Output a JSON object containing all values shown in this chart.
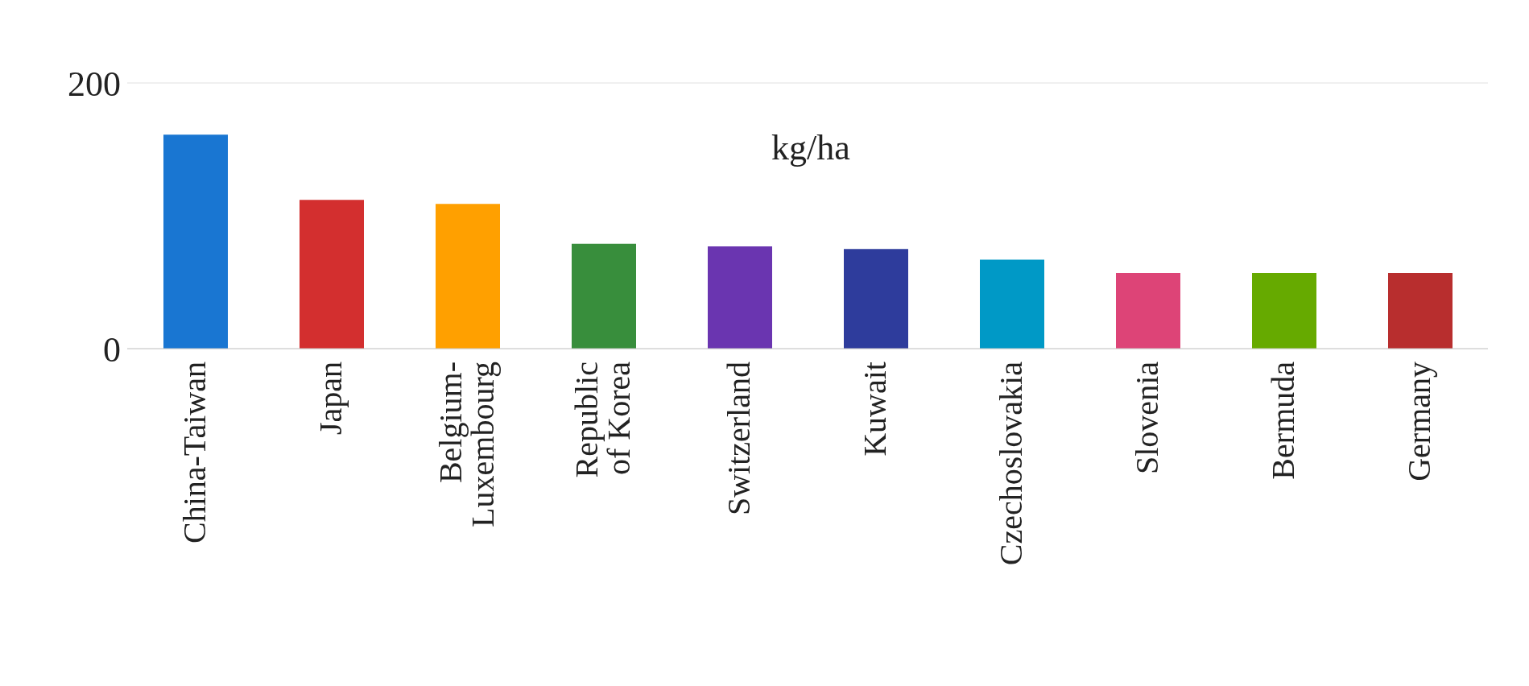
{
  "chart_data": {
    "type": "bar",
    "annotations": [
      "kg/ha"
    ],
    "categories": [
      "China-Taiwan",
      "Japan",
      "Belgium-Luxembourg",
      "Republic of Korea",
      "Switzerland",
      "Kuwait",
      "Czechoslovakia",
      "Slovenia",
      "Bermuda",
      "Germany"
    ],
    "values": [
      161,
      112,
      109,
      79,
      77,
      75,
      67,
      57,
      57,
      57
    ],
    "colors": [
      "#1976d2",
      "#d32f2f",
      "#ffa000",
      "#388e3c",
      "#6a35b0",
      "#2e3c9c",
      "#0099c6",
      "#dd4477",
      "#66aa00",
      "#b82e2e"
    ],
    "ylim": [
      0,
      200
    ],
    "yticks": [
      0,
      200
    ],
    "grid": "y",
    "legend": false
  }
}
